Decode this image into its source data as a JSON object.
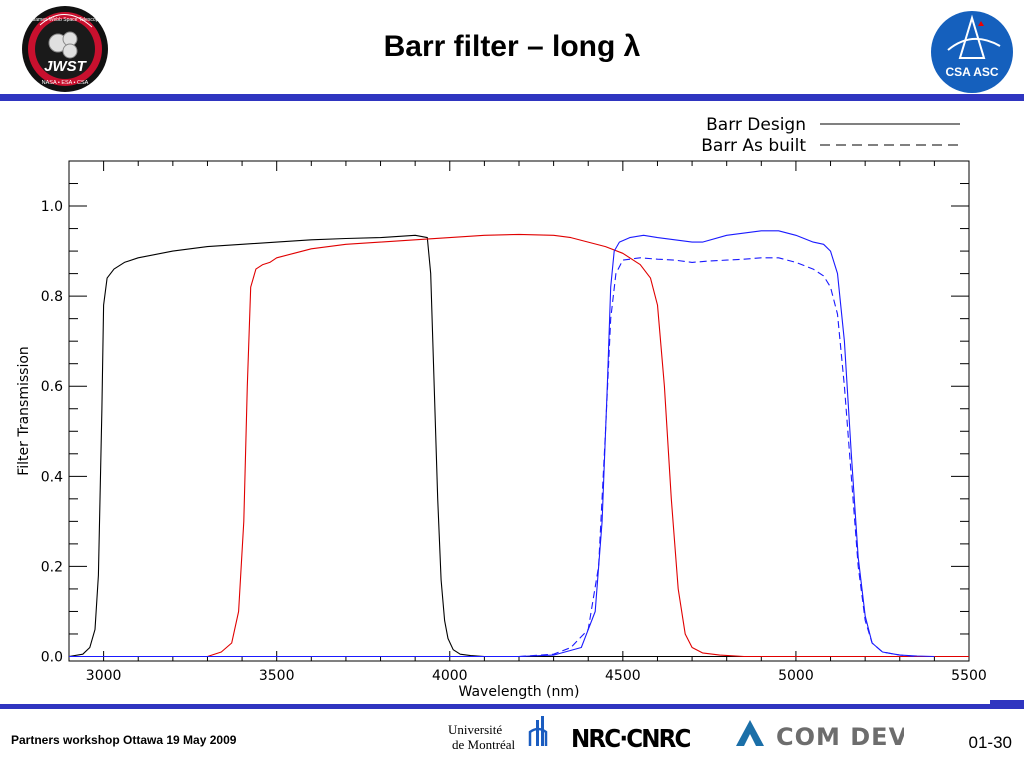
{
  "slide": {
    "title": "Barr filter – long λ",
    "footer": "Partners workshop Ottawa 19 May 2009",
    "page_number": "01-30"
  },
  "logos": {
    "jwst": {
      "main": "JWST",
      "ring_top": "James Webb Space Telescope",
      "ring_bottom": "NASA • ESA • CSA"
    },
    "csa": {
      "text": "CSA ASC"
    },
    "udem": {
      "line1": "Université",
      "line2": "de Montréal"
    },
    "nrc": {
      "text": "NRC·CNRC"
    },
    "comdev": {
      "text": "COM DEV"
    }
  },
  "colors": {
    "accent": "#2f35c0",
    "design_black": "#000000",
    "red": "#e00000",
    "blue": "#1a1aff"
  },
  "chart_data": {
    "type": "line",
    "xlabel": "Wavelength (nm)",
    "ylabel": "Filter Transmission",
    "xlim": [
      2900,
      5500
    ],
    "ylim": [
      -0.01,
      1.1
    ],
    "xticks": [
      3000,
      3500,
      4000,
      4500,
      5000,
      5500
    ],
    "xtick_labels": [
      "3000",
      "3500",
      "4000",
      "4500",
      "5000",
      "5500"
    ],
    "yticks": [
      0.0,
      0.2,
      0.4,
      0.6,
      0.8,
      1.0
    ],
    "ytick_labels": [
      "0.0",
      "0.2",
      "0.4",
      "0.6",
      "0.8",
      "1.0"
    ],
    "legend": {
      "position": "top-right",
      "entries": [
        {
          "label": "Barr Design",
          "style": "solid"
        },
        {
          "label": "Barr As built",
          "style": "dashed"
        }
      ]
    },
    "series": [
      {
        "color": "#000000",
        "style": "solid",
        "x": [
          2900,
          2940,
          2960,
          2975,
          2985,
          2995,
          3000,
          3010,
          3030,
          3060,
          3100,
          3200,
          3300,
          3400,
          3500,
          3600,
          3700,
          3800,
          3900,
          3935,
          3945,
          3955,
          3965,
          3975,
          3985,
          3995,
          4010,
          4030,
          4060,
          4100,
          5400
        ],
        "y": [
          0.0,
          0.005,
          0.02,
          0.06,
          0.18,
          0.55,
          0.78,
          0.84,
          0.86,
          0.875,
          0.885,
          0.9,
          0.91,
          0.915,
          0.92,
          0.925,
          0.928,
          0.93,
          0.935,
          0.93,
          0.85,
          0.6,
          0.35,
          0.17,
          0.08,
          0.04,
          0.015,
          0.005,
          0.002,
          0.0,
          0.0
        ]
      },
      {
        "color": "#e00000",
        "style": "solid",
        "x": [
          2900,
          3300,
          3340,
          3370,
          3390,
          3405,
          3415,
          3425,
          3440,
          3460,
          3480,
          3500,
          3550,
          3600,
          3700,
          3800,
          3900,
          4000,
          4100,
          4200,
          4300,
          4350,
          4400,
          4450,
          4500,
          4550,
          4580,
          4600,
          4620,
          4640,
          4660,
          4680,
          4700,
          4730,
          4780,
          4850,
          5500
        ],
        "y": [
          0.0,
          0.0,
          0.01,
          0.03,
          0.1,
          0.3,
          0.6,
          0.82,
          0.86,
          0.87,
          0.875,
          0.885,
          0.895,
          0.905,
          0.915,
          0.92,
          0.925,
          0.93,
          0.935,
          0.937,
          0.935,
          0.93,
          0.92,
          0.91,
          0.895,
          0.87,
          0.84,
          0.78,
          0.6,
          0.35,
          0.15,
          0.05,
          0.02,
          0.008,
          0.003,
          0.0,
          0.0
        ]
      },
      {
        "color": "#1a1aff",
        "style": "solid",
        "x": [
          2900,
          4200,
          4300,
          4380,
          4420,
          4440,
          4455,
          4465,
          4475,
          4490,
          4520,
          4560,
          4600,
          4650,
          4700,
          4730,
          4800,
          4850,
          4900,
          4950,
          5000,
          5050,
          5080,
          5100,
          5120,
          5140,
          5160,
          5180,
          5200,
          5220,
          5250,
          5300,
          5350,
          5400
        ],
        "y": [
          0.0,
          0.0,
          0.003,
          0.02,
          0.1,
          0.3,
          0.6,
          0.82,
          0.9,
          0.92,
          0.93,
          0.935,
          0.93,
          0.925,
          0.92,
          0.92,
          0.935,
          0.94,
          0.945,
          0.945,
          0.935,
          0.92,
          0.915,
          0.9,
          0.85,
          0.7,
          0.45,
          0.22,
          0.09,
          0.03,
          0.01,
          0.003,
          0.001,
          0.0
        ]
      },
      {
        "color": "#1a1aff",
        "style": "dashed",
        "x": [
          4200,
          4300,
          4350,
          4400,
          4430,
          4450,
          4465,
          4480,
          4500,
          4550,
          4600,
          4650,
          4700,
          4750,
          4800,
          4850,
          4900,
          4950,
          5000,
          5050,
          5080,
          5100,
          5120,
          5140,
          5160,
          5180,
          5200,
          5220,
          5250,
          5300,
          5350
        ],
        "y": [
          0.0,
          0.005,
          0.02,
          0.06,
          0.2,
          0.5,
          0.75,
          0.85,
          0.88,
          0.885,
          0.882,
          0.88,
          0.875,
          0.878,
          0.88,
          0.882,
          0.885,
          0.885,
          0.875,
          0.86,
          0.845,
          0.82,
          0.76,
          0.6,
          0.4,
          0.2,
          0.08,
          0.03,
          0.01,
          0.003,
          0.0
        ]
      }
    ]
  }
}
